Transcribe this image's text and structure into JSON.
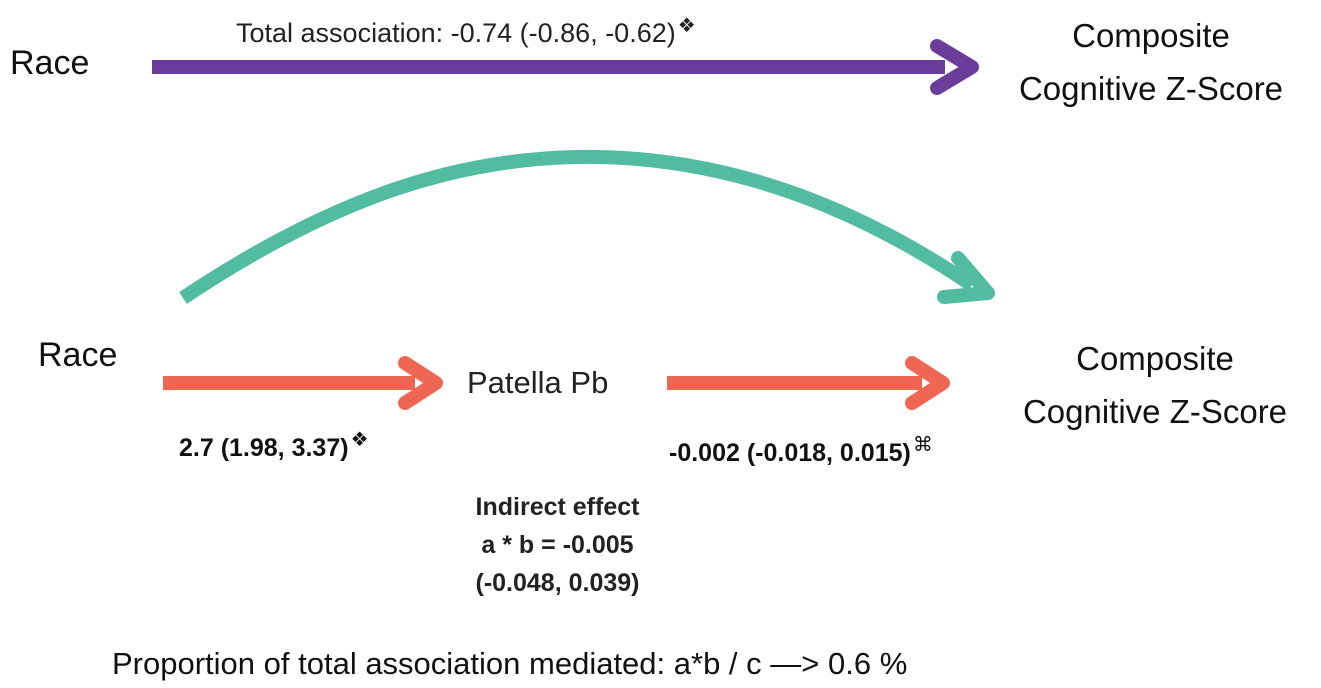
{
  "top_path": {
    "source": "Race",
    "target_line1": "Composite",
    "target_line2": "Cognitive Z-Score",
    "label": "Total association: -0.74 (-0.86, -0.62)",
    "label_symbol": "❖",
    "arrow_color": "#6a3d9a"
  },
  "mediation_path": {
    "source": "Race",
    "mediator": "Patella Pb",
    "target_line1": "Composite",
    "target_line2": "Cognitive Z-Score",
    "a_label": "2.7 (1.98, 3.37)",
    "a_symbol": "❖",
    "b_label": "-0.002 (-0.018, 0.015)",
    "b_symbol": "⌘",
    "arrow_color": "#ef6653",
    "direct_arrow_color": "#52bca0"
  },
  "indirect_effect": {
    "line1": "Indirect effect",
    "line2": "a * b = -0.005",
    "line3": "(-0.048, 0.039)"
  },
  "proportion": "Proportion of total association mediated: a*b / c —> 0.6 %"
}
